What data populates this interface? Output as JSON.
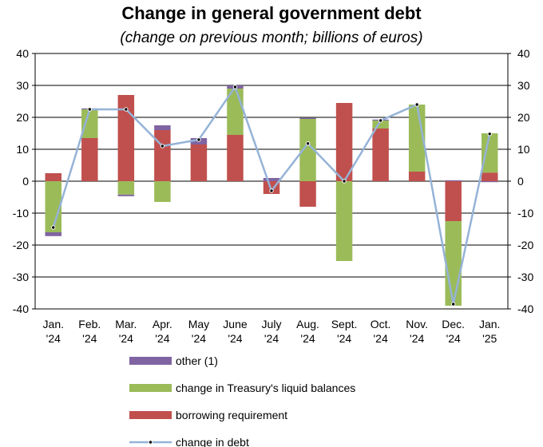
{
  "chart_data": {
    "type": "bar",
    "stacked": true,
    "title": "Change in general government debt",
    "subtitle": "(change on previous month; billions of euros)",
    "categories": [
      [
        "Jan.",
        "'24"
      ],
      [
        "Feb.",
        "'24"
      ],
      [
        "Mar.",
        "'24"
      ],
      [
        "Apr.",
        "'24"
      ],
      [
        "May",
        "'24"
      ],
      [
        "June",
        "'24"
      ],
      [
        "July",
        "'24"
      ],
      [
        "Aug.",
        "'24"
      ],
      [
        "Sept.",
        "'24"
      ],
      [
        "Oct.",
        "'24"
      ],
      [
        "Nov.",
        "'24"
      ],
      [
        "Dec.",
        "'24"
      ],
      [
        "Jan.",
        "'25"
      ]
    ],
    "ylim": [
      -40,
      40
    ],
    "yticks": [
      -40,
      -30,
      -20,
      -10,
      0,
      10,
      20,
      30,
      40
    ],
    "grid": true,
    "legend_position": "bottom",
    "series": [
      {
        "name": "borrowing requirement",
        "kind": "bar",
        "color": "#C0504D",
        "values": [
          2.5,
          13.5,
          27,
          16,
          11.5,
          14.5,
          -4,
          -8,
          24.5,
          16.5,
          3,
          -12.5,
          2.7
        ]
      },
      {
        "name": "change in Treasury's liquid balances",
        "kind": "bar",
        "color": "#9BBB59",
        "values": [
          -16,
          9,
          -4.2,
          -6.5,
          0,
          14.5,
          0,
          19.5,
          -25,
          2.5,
          21,
          -26.5,
          12.3
        ]
      },
      {
        "name": "other (1)",
        "kind": "bar",
        "color": "#8064A2",
        "values": [
          -1.2,
          0.3,
          -0.5,
          1.5,
          2,
          1,
          1,
          0.3,
          0,
          0.3,
          0,
          0.3,
          -0.3
        ]
      },
      {
        "name": "change in debt",
        "kind": "line",
        "color": "#95B3D7",
        "values": [
          -14.5,
          22.5,
          22.5,
          11,
          13,
          29.5,
          -3,
          11.8,
          0,
          19,
          24,
          -38.5,
          14.8
        ]
      }
    ],
    "legend_order": [
      "other (1)",
      "change in Treasury's liquid balances",
      "borrowing requirement",
      "change in debt"
    ]
  }
}
